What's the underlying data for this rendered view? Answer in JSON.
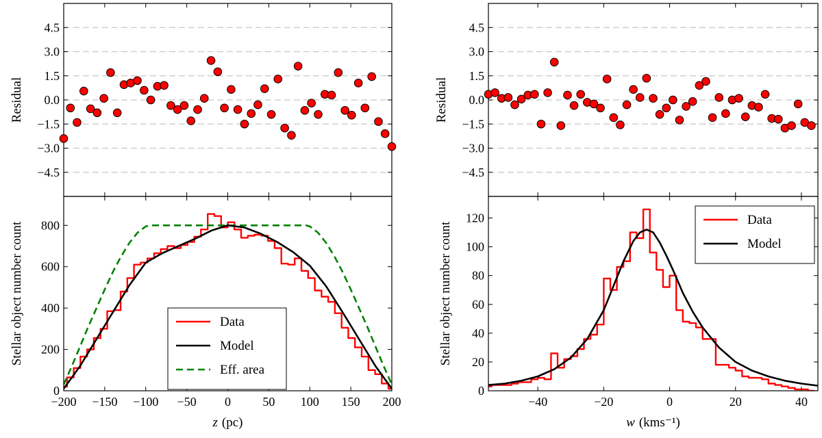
{
  "colors": {
    "data": "#ff0000",
    "model": "#000000",
    "eff_area": "#008000",
    "points": "#ff0000",
    "grid": "#c8c8c8"
  },
  "chart_data": [
    {
      "id": "z-residual",
      "type": "scatter",
      "xlabel": "",
      "ylabel": "Residual",
      "xlim": [
        -200,
        200
      ],
      "ylim": [
        -6,
        6
      ],
      "yticks": [
        "4.5",
        "3.0",
        "1.5",
        "0.0",
        "-1.5",
        "-3.0",
        "-4.5"
      ],
      "ytick_values": [
        4.5,
        3.0,
        1.5,
        0.0,
        -1.5,
        -3.0,
        -4.5
      ],
      "grid": "dashed-horizontal",
      "points": [
        [
          -200,
          -2.4
        ],
        [
          -191.8,
          -0.5
        ],
        [
          -183.7,
          -1.4
        ],
        [
          -175.5,
          0.55
        ],
        [
          -167.3,
          -0.55
        ],
        [
          -159.2,
          -0.8
        ],
        [
          -151,
          0.1
        ],
        [
          -142.9,
          1.7
        ],
        [
          -134.7,
          -0.8
        ],
        [
          -126.5,
          0.95
        ],
        [
          -118.4,
          1.05
        ],
        [
          -110.2,
          1.2
        ],
        [
          -102,
          0.6
        ],
        [
          -93.9,
          0.0
        ],
        [
          -85.7,
          0.85
        ],
        [
          -77.6,
          0.9
        ],
        [
          -69.4,
          -0.35
        ],
        [
          -61.2,
          -0.6
        ],
        [
          -53.1,
          -0.35
        ],
        [
          -44.9,
          -1.3
        ],
        [
          -36.7,
          -0.6
        ],
        [
          -28.6,
          0.1
        ],
        [
          -20.4,
          2.45
        ],
        [
          -12.2,
          1.75
        ],
        [
          -4.1,
          -0.5
        ],
        [
          4.1,
          0.65
        ],
        [
          12.2,
          -0.6
        ],
        [
          20.4,
          -1.5
        ],
        [
          28.6,
          -0.85
        ],
        [
          36.7,
          -0.3
        ],
        [
          44.9,
          0.7
        ],
        [
          53.1,
          -0.9
        ],
        [
          61.2,
          1.3
        ],
        [
          69.4,
          -1.75
        ],
        [
          77.6,
          -2.2
        ],
        [
          85.7,
          2.1
        ],
        [
          93.9,
          -0.65
        ],
        [
          102,
          -0.2
        ],
        [
          110.2,
          -0.9
        ],
        [
          118.4,
          0.35
        ],
        [
          126.5,
          0.3
        ],
        [
          134.7,
          1.7
        ],
        [
          142.9,
          -0.65
        ],
        [
          151,
          -0.95
        ],
        [
          159.2,
          1.05
        ],
        [
          167.3,
          -0.5
        ],
        [
          175.5,
          1.45
        ],
        [
          183.7,
          -1.35
        ],
        [
          191.8,
          -2.1
        ],
        [
          200,
          -2.9
        ]
      ]
    },
    {
      "id": "z-counts",
      "type": "line",
      "xlabel_var": "z",
      "xlabel_unit": "(pc)",
      "ylabel": "Stellar object number count",
      "xlim": [
        -200,
        200
      ],
      "ylim": [
        0,
        940
      ],
      "xticks": [
        "-200",
        "-150",
        "-100",
        "-50",
        "0",
        "50",
        "100",
        "150",
        "200"
      ],
      "xtick_values": [
        -200,
        -150,
        -100,
        -50,
        0,
        50,
        100,
        150,
        200
      ],
      "yticks": [
        "0",
        "200",
        "400",
        "600",
        "800"
      ],
      "ytick_values": [
        0,
        200,
        400,
        600,
        800
      ],
      "legend_position": "lower-center",
      "series": [
        {
          "name": "Data",
          "style": "step",
          "x": [
            -200,
            -191.8,
            -183.7,
            -175.5,
            -167.3,
            -159.2,
            -151,
            -142.9,
            -134.7,
            -126.5,
            -118.4,
            -110.2,
            -102,
            -93.9,
            -85.7,
            -77.6,
            -69.4,
            -61.2,
            -53.1,
            -44.9,
            -36.7,
            -28.6,
            -20.4,
            -12.2,
            -4.1,
            4.1,
            12.2,
            20.4,
            28.6,
            36.7,
            44.9,
            53.1,
            61.2,
            69.4,
            77.6,
            85.7,
            93.9,
            102,
            110.2,
            118.4,
            126.5,
            134.7,
            142.9,
            151,
            159.2,
            167.3,
            175.5,
            183.7,
            191.8,
            200
          ],
          "y": [
            20,
            65,
            110,
            165,
            200,
            255,
            300,
            385,
            390,
            480,
            545,
            610,
            620,
            640,
            665,
            685,
            700,
            690,
            705,
            720,
            745,
            780,
            855,
            845,
            790,
            815,
            780,
            740,
            750,
            755,
            750,
            725,
            690,
            615,
            610,
            640,
            580,
            545,
            485,
            455,
            430,
            375,
            305,
            255,
            210,
            165,
            100,
            80,
            35,
            10
          ]
        },
        {
          "name": "Model",
          "style": "solid",
          "x": [
            -200,
            -180,
            -160,
            -140,
            -120,
            -100,
            -80,
            -60,
            -40,
            -20,
            0,
            20,
            40,
            60,
            80,
            100,
            120,
            140,
            160,
            180,
            200
          ],
          "y": [
            10,
            120,
            250,
            380,
            510,
            620,
            665,
            700,
            735,
            775,
            800,
            790,
            760,
            720,
            670,
            605,
            505,
            380,
            250,
            120,
            10
          ]
        },
        {
          "name": "Eff. area",
          "style": "dashed",
          "x": [
            -200,
            -190,
            -180,
            -170,
            -160,
            -150,
            -140,
            -130,
            -120,
            -110,
            -100,
            -95,
            -90,
            0,
            90,
            95,
            100,
            110,
            120,
            130,
            140,
            150,
            160,
            170,
            180,
            190,
            200
          ],
          "y": [
            30,
            120,
            215,
            310,
            400,
            490,
            575,
            650,
            715,
            765,
            795,
            800,
            800,
            800,
            800,
            800,
            795,
            765,
            715,
            650,
            575,
            490,
            400,
            310,
            215,
            120,
            30
          ]
        }
      ]
    },
    {
      "id": "w-residual",
      "type": "scatter",
      "xlabel": "",
      "ylabel": "Residual",
      "xlim": [
        -55,
        45
      ],
      "ylim": [
        -6,
        6
      ],
      "yticks": [
        "4.5",
        "3.0",
        "1.5",
        "0.0",
        "-1.5",
        "-3.0",
        "-4.5"
      ],
      "ytick_values": [
        4.5,
        3.0,
        1.5,
        0.0,
        -1.5,
        -3.0,
        -4.5
      ],
      "grid": "dashed-horizontal",
      "points": [
        [
          -55,
          0.35
        ],
        [
          -53,
          0.45
        ],
        [
          -51,
          0.1
        ],
        [
          -49,
          0.15
        ],
        [
          -47,
          -0.3
        ],
        [
          -45,
          0.05
        ],
        [
          -43,
          0.3
        ],
        [
          -41,
          0.35
        ],
        [
          -39,
          -1.5
        ],
        [
          -37,
          0.45
        ],
        [
          -35,
          2.35
        ],
        [
          -33,
          -1.6
        ],
        [
          -31,
          0.3
        ],
        [
          -29,
          -0.35
        ],
        [
          -27,
          0.35
        ],
        [
          -25,
          -0.15
        ],
        [
          -23,
          -0.25
        ],
        [
          -21,
          -0.5
        ],
        [
          -19,
          1.3
        ],
        [
          -17,
          -1.1
        ],
        [
          -15,
          -1.55
        ],
        [
          -13,
          -0.3
        ],
        [
          -11,
          0.65
        ],
        [
          -9,
          0.15
        ],
        [
          -7,
          1.35
        ],
        [
          -5,
          0.1
        ],
        [
          -3,
          -0.9
        ],
        [
          -1,
          -0.5
        ],
        [
          1,
          0.0
        ],
        [
          3,
          -1.25
        ],
        [
          5,
          -0.4
        ],
        [
          7,
          -0.1
        ],
        [
          9,
          0.9
        ],
        [
          11,
          1.15
        ],
        [
          13,
          -1.1
        ],
        [
          15,
          0.15
        ],
        [
          17,
          -0.85
        ],
        [
          19,
          0.0
        ],
        [
          21,
          0.1
        ],
        [
          23,
          -1.05
        ],
        [
          25,
          -0.35
        ],
        [
          27,
          -0.45
        ],
        [
          29,
          0.35
        ],
        [
          31,
          -1.15
        ],
        [
          33,
          -1.2
        ],
        [
          35,
          -1.75
        ],
        [
          37,
          -1.6
        ],
        [
          39,
          -0.25
        ],
        [
          41,
          -1.4
        ],
        [
          43,
          -1.6
        ]
      ]
    },
    {
      "id": "w-counts",
      "type": "line",
      "xlabel_var": "w",
      "xlabel_unit": "(kms⁻¹)",
      "ylabel": "Stellar object number count",
      "xlim": [
        -55,
        45
      ],
      "ylim": [
        0,
        135
      ],
      "xticks": [
        "-40",
        "-20",
        "0",
        "20",
        "40"
      ],
      "xtick_values": [
        -40,
        -20,
        0,
        20,
        40
      ],
      "yticks": [
        "0",
        "20",
        "40",
        "60",
        "80",
        "100",
        "120"
      ],
      "ytick_values": [
        0,
        20,
        40,
        60,
        80,
        100,
        120
      ],
      "legend_position": "upper-right",
      "series": [
        {
          "name": "Data",
          "style": "step",
          "x": [
            -55,
            -53,
            -51,
            -49,
            -47,
            -45,
            -43,
            -41,
            -39,
            -37,
            -35,
            -33,
            -31,
            -29,
            -27,
            -25,
            -23,
            -21,
            -19,
            -17,
            -15,
            -13,
            -11,
            -9,
            -7,
            -5,
            -3,
            -1,
            1,
            3,
            5,
            7,
            9,
            11,
            13,
            15,
            17,
            19,
            21,
            23,
            25,
            27,
            29,
            31,
            33,
            35,
            37,
            39,
            41,
            43
          ],
          "y": [
            3,
            4,
            4,
            4,
            5,
            6,
            6,
            8,
            9,
            8,
            26,
            16,
            22,
            24,
            29,
            36,
            39,
            46,
            78,
            70,
            86,
            90,
            110,
            106,
            126,
            96,
            84,
            72,
            80,
            56,
            48,
            47,
            44,
            36,
            36,
            18,
            18,
            16,
            14,
            10,
            9,
            9,
            8,
            5,
            4,
            3,
            2,
            1,
            1,
            0
          ]
        },
        {
          "name": "Model",
          "style": "solid",
          "x": [
            -55,
            -50,
            -45,
            -40,
            -35,
            -30,
            -25,
            -20,
            -17,
            -14,
            -11,
            -9,
            -7,
            -5,
            -3,
            -1,
            1,
            4,
            7,
            10,
            15,
            20,
            25,
            30,
            35,
            40,
            45
          ],
          "y": [
            4,
            5,
            7,
            10,
            15,
            23,
            36,
            56,
            73,
            90,
            104,
            110,
            112,
            110,
            103,
            94,
            84,
            68,
            55,
            44,
            30,
            20,
            14,
            10,
            7,
            5,
            3.5
          ]
        }
      ]
    }
  ]
}
